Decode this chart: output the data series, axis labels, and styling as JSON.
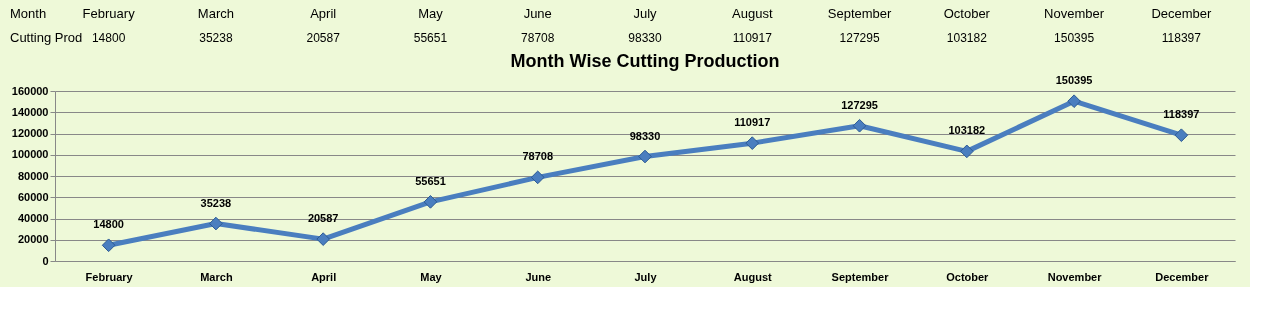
{
  "chart_data": [
    {
      "type": "other",
      "categories": [
        "February",
        "March",
        "April",
        "May",
        "June",
        "July",
        "August",
        "September",
        "October",
        "November",
        "December"
      ],
      "values": [
        14800,
        35238,
        20587,
        55651,
        78708,
        98330,
        110917,
        127295,
        103182,
        150395,
        118397
      ],
      "data_labels": true,
      "annotations": [
        "Month",
        "Cutting Prod"
      ]
    },
    {
      "type": "line",
      "title": "Month Wise Cutting Production",
      "categories": [
        "February",
        "March",
        "April",
        "May",
        "June",
        "July",
        "August",
        "September",
        "October",
        "November",
        "December"
      ],
      "series": [
        {
          "color": "#4a7ebf",
          "values": [
            14800,
            35238,
            20587,
            55651,
            78708,
            98330,
            110917,
            127295,
            103182,
            150395,
            118397
          ]
        }
      ],
      "ylim": [
        0,
        160000
      ],
      "yticks": [
        0,
        20000,
        40000,
        60000,
        80000,
        100000,
        120000,
        140000,
        160000
      ],
      "grid": "y",
      "marker": "diamond",
      "line_style": "solid",
      "data_labels": true
    }
  ]
}
